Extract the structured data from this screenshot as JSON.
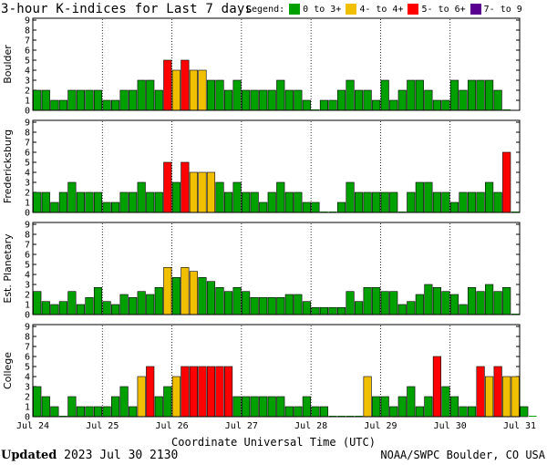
{
  "header": {
    "title": "3-hour K-indices for Last 7 days",
    "legend_title": "Legend:",
    "legend": [
      {
        "label": "0 to 3+",
        "color": "#00a000"
      },
      {
        "label": "4- to 4+",
        "color": "#f0c000"
      },
      {
        "label": "5- to 6+",
        "color": "#ff0000"
      },
      {
        "label": "7- to 9",
        "color": "#5a0090"
      }
    ]
  },
  "footer": {
    "xlabel": "Coordinate Universal Time (UTC)",
    "updated_label": "Updated",
    "updated_value": "2023 Jul 30 2130",
    "credit": "NOAA/SWPC Boulder, CO USA"
  },
  "chart_data": [
    {
      "type": "bar",
      "station": "Boulder",
      "ylabel": "Boulder",
      "ylim": [
        0,
        9
      ],
      "yticks": [
        "0",
        "1",
        "2",
        "3",
        "4",
        "5",
        "6",
        "7",
        "8",
        "9"
      ],
      "xticks": [
        "Jul 24",
        "Jul 25",
        "Jul 26",
        "Jul 27",
        "Jul 28",
        "Jul 29",
        "Jul 30",
        "Jul 31"
      ],
      "values": [
        2,
        2,
        1,
        1,
        2,
        2,
        2,
        2,
        1,
        1,
        2,
        2,
        3,
        3,
        2,
        5,
        4,
        5,
        4,
        4,
        3,
        3,
        2,
        3,
        2,
        2,
        2,
        2,
        3,
        2,
        2,
        1,
        0,
        1,
        1,
        2,
        3,
        2,
        2,
        1,
        3,
        1,
        2,
        3,
        3,
        2,
        1,
        1,
        3,
        2,
        3,
        3,
        3,
        2,
        0
      ]
    },
    {
      "type": "bar",
      "station": "Fredericksburg",
      "ylabel": "Fredericksburg",
      "ylim": [
        0,
        9
      ],
      "yticks": [
        "0",
        "1",
        "2",
        "3",
        "4",
        "5",
        "6",
        "7",
        "8",
        "9"
      ],
      "xticks": [
        "Jul 24",
        "Jul 25",
        "Jul 26",
        "Jul 27",
        "Jul 28",
        "Jul 29",
        "Jul 30",
        "Jul 31"
      ],
      "values": [
        2,
        2,
        1,
        2,
        3,
        2,
        2,
        2,
        1,
        1,
        2,
        2,
        3,
        2,
        2,
        5,
        3,
        5,
        4,
        4,
        4,
        3,
        2,
        3,
        2,
        2,
        1,
        2,
        3,
        2,
        2,
        1,
        1,
        0,
        0,
        1,
        3,
        2,
        2,
        2,
        2,
        2,
        0,
        2,
        3,
        3,
        2,
        2,
        1,
        2,
        2,
        2,
        3,
        2,
        6,
        0
      ]
    },
    {
      "type": "bar",
      "station": "Est. Planetary",
      "ylabel": "Est. Planetary",
      "ylim": [
        0,
        9
      ],
      "yticks": [
        "0",
        "1",
        "2",
        "3",
        "4",
        "5",
        "6",
        "7",
        "8",
        "9"
      ],
      "xticks": [
        "Jul 24",
        "Jul 25",
        "Jul 26",
        "Jul 27",
        "Jul 28",
        "Jul 29",
        "Jul 30",
        "Jul 31"
      ],
      "values": [
        2.3,
        1.3,
        1,
        1.3,
        2.3,
        1,
        1.7,
        2.7,
        1.3,
        1,
        2,
        1.7,
        2.3,
        2,
        2.7,
        4.7,
        3.7,
        4.7,
        4.3,
        3.7,
        3.3,
        2.7,
        2.3,
        2.7,
        2.3,
        1.7,
        1.7,
        1.7,
        1.7,
        2,
        2,
        1.3,
        0.7,
        0.7,
        0.7,
        0.7,
        2.3,
        1.3,
        2.7,
        2.7,
        2.3,
        2.3,
        1,
        1.3,
        2,
        3,
        2.7,
        2.3,
        2,
        1,
        2.7,
        2.3,
        3,
        2.3,
        2.7,
        0
      ]
    },
    {
      "type": "bar",
      "station": "College",
      "ylabel": "College",
      "ylim": [
        0,
        9
      ],
      "yticks": [
        "0",
        "1",
        "2",
        "3",
        "4",
        "5",
        "6",
        "7",
        "8",
        "9"
      ],
      "xticks": [
        "Jul 24",
        "Jul 25",
        "Jul 26",
        "Jul 27",
        "Jul 28",
        "Jul 29",
        "Jul 30",
        "Jul 31"
      ],
      "values": [
        3,
        2,
        1,
        0,
        2,
        1,
        1,
        1,
        1,
        2,
        3,
        1,
        4,
        5,
        2,
        3,
        4,
        5,
        5,
        5,
        5,
        5,
        5,
        2,
        2,
        2,
        2,
        2,
        2,
        1,
        1,
        2,
        1,
        1,
        0,
        0,
        0,
        0,
        4,
        2,
        2,
        1,
        2,
        3,
        1,
        2,
        6,
        3,
        2,
        1,
        1,
        5,
        4,
        5,
        4,
        4,
        1,
        0
      ]
    }
  ]
}
